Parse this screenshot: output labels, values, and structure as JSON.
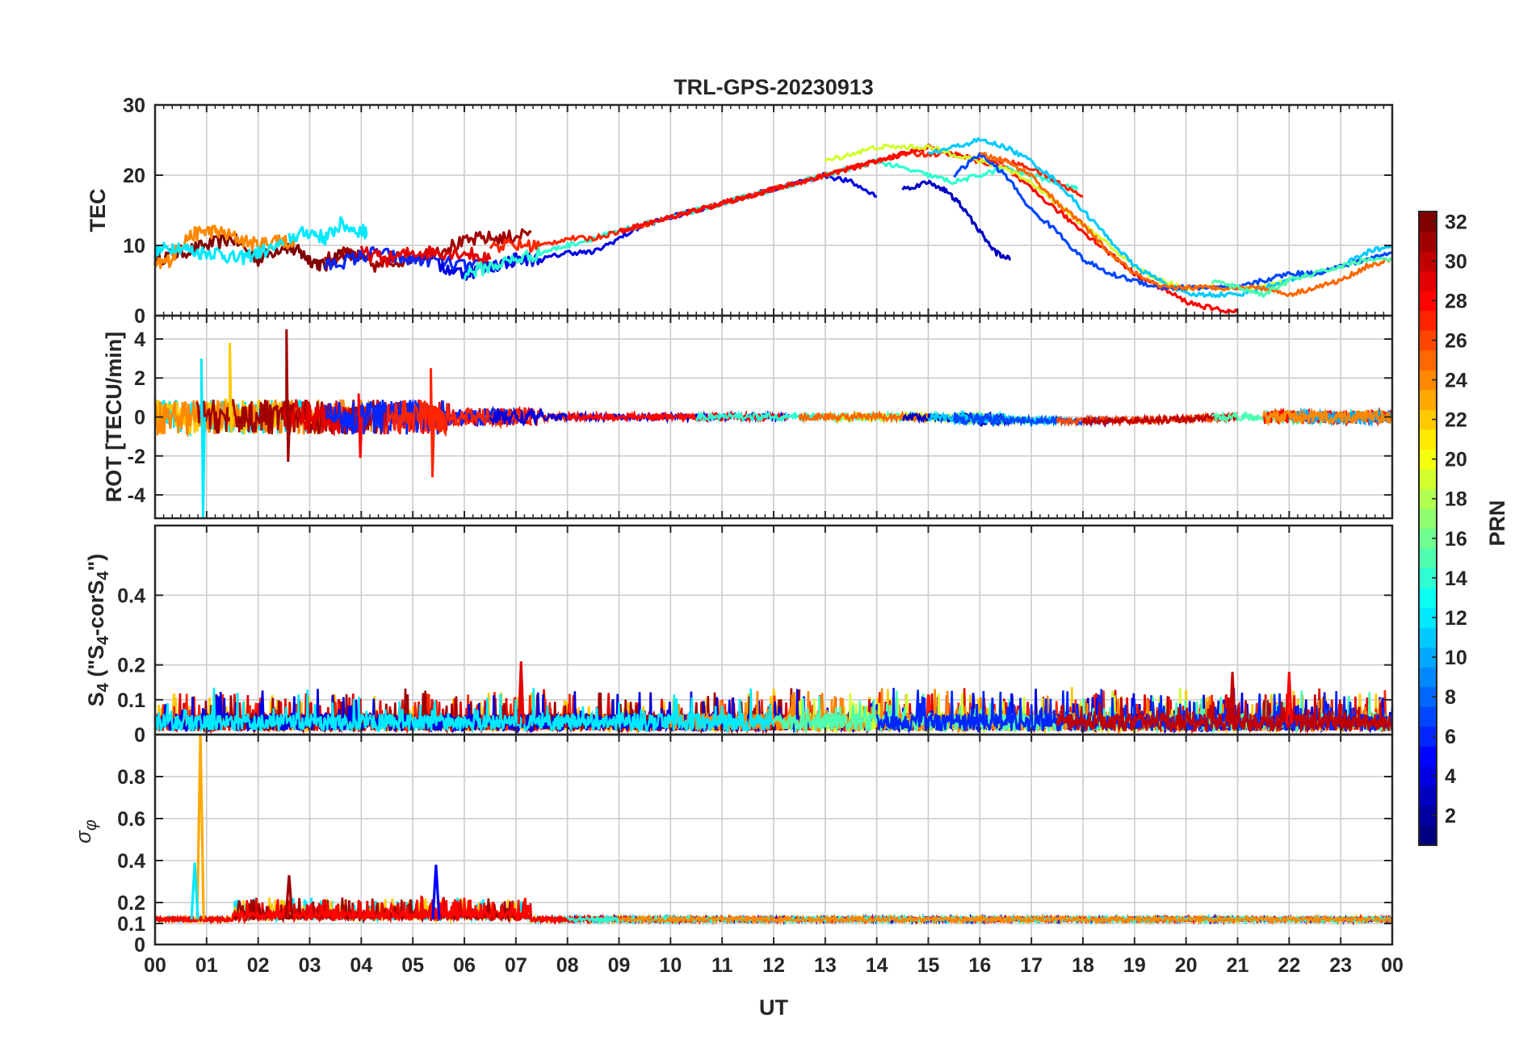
{
  "title": "TRL-GPS-20230913",
  "xlabel": "UT",
  "x_tick_labels": [
    "00",
    "01",
    "02",
    "03",
    "04",
    "05",
    "06",
    "07",
    "08",
    "09",
    "10",
    "11",
    "12",
    "13",
    "14",
    "15",
    "16",
    "17",
    "18",
    "19",
    "20",
    "21",
    "22",
    "23",
    "00"
  ],
  "colorbar": {
    "label": "PRN",
    "range": [
      1,
      32
    ],
    "tick_labels": [
      "2",
      "4",
      "6",
      "8",
      "10",
      "12",
      "14",
      "16",
      "18",
      "20",
      "22",
      "24",
      "26",
      "28",
      "30",
      "32"
    ]
  },
  "chart_data": [
    {
      "type": "line",
      "panel": "TEC",
      "ylabel": "TEC",
      "ylim": [
        0,
        30
      ],
      "y_ticks": [
        "0",
        "10",
        "20",
        "30"
      ],
      "xlim": [
        0,
        24
      ],
      "series": [
        {
          "prn": 32,
          "x": [
            0.0,
            0.5,
            1.0,
            1.5,
            2.0,
            2.5,
            2.8,
            3.0,
            3.3,
            3.6,
            4.0
          ],
          "y": [
            8,
            9,
            10,
            11,
            8,
            10,
            9,
            8,
            7,
            9,
            8
          ]
        },
        {
          "prn": 24,
          "x": [
            0.0,
            0.3,
            0.6,
            0.9,
            1.2,
            1.6,
            2.0,
            2.4,
            2.7
          ],
          "y": [
            7,
            8,
            11,
            12,
            12,
            11,
            10,
            11,
            10
          ]
        },
        {
          "prn": 12,
          "x": [
            0.0,
            0.4,
            0.8,
            1.2,
            1.6,
            2.0,
            2.5
          ],
          "y": [
            9,
            10,
            9,
            9,
            8,
            9,
            10
          ]
        },
        {
          "prn": 12,
          "x": [
            2.6,
            3.0,
            3.3,
            3.6,
            4.0,
            4.1
          ],
          "y": [
            11,
            12,
            11,
            13,
            12,
            12
          ]
        },
        {
          "prn": 31,
          "x": [
            3.3,
            3.8,
            4.3,
            4.8,
            5.3,
            5.8,
            6.3,
            6.8,
            7.3
          ],
          "y": [
            8,
            9,
            7,
            8,
            9,
            10,
            11,
            11,
            12
          ]
        },
        {
          "prn": 6,
          "x": [
            3.3,
            3.8,
            4.3,
            4.8,
            5.3,
            6.0,
            6.5,
            7.0
          ],
          "y": [
            7,
            8,
            9,
            8,
            8,
            7,
            7,
            8
          ]
        },
        {
          "prn": 29,
          "x": [
            4.0,
            4.5,
            5.0,
            5.5,
            6.0,
            6.5
          ],
          "y": [
            9,
            8,
            9,
            9,
            9,
            8
          ]
        },
        {
          "prn": 4,
          "x": [
            5.5,
            6.0,
            6.5,
            7.0,
            7.5,
            8.0,
            8.5,
            9.0,
            9.5,
            10.0,
            10.5,
            11.0,
            11.5,
            12.0,
            12.5,
            13.0,
            13.5,
            14.0
          ],
          "y": [
            7,
            6,
            7,
            8,
            8,
            9,
            9,
            11,
            13,
            14,
            15,
            16,
            17,
            18,
            19,
            20,
            19,
            17
          ]
        },
        {
          "prn": 14,
          "x": [
            6.0,
            6.5,
            7.0,
            7.5,
            8.0,
            8.5,
            9.0,
            9.5,
            10.0,
            10.5,
            11.0,
            11.5,
            12.0,
            12.5,
            13.0,
            13.5,
            14.0,
            14.5,
            15.0,
            15.5,
            16.0,
            16.5,
            17.0,
            17.5,
            17.9
          ],
          "y": [
            6,
            7,
            8,
            9,
            10,
            11,
            12,
            13,
            14,
            15,
            16,
            17,
            18,
            19,
            20,
            21,
            22,
            21,
            20,
            19,
            20,
            21,
            20,
            19,
            18
          ]
        },
        {
          "prn": 27,
          "x": [
            6.5,
            7.0,
            7.5,
            8.0,
            8.5,
            9.0,
            9.5,
            10.0,
            10.5,
            11.0,
            11.5,
            12.0,
            12.5,
            13.0,
            13.5,
            14.0,
            14.5,
            15.0,
            15.5,
            16.0,
            16.5,
            17.0,
            17.5,
            18.0
          ],
          "y": [
            10,
            10,
            10,
            11,
            11,
            12,
            13,
            14,
            15,
            16,
            17,
            18,
            19,
            20,
            21,
            22,
            23,
            23,
            23,
            22,
            22,
            21,
            19,
            17
          ]
        },
        {
          "prn": 28,
          "x": [
            9.0,
            9.5,
            10.0,
            10.5,
            11.0,
            11.5,
            12.0,
            12.5,
            13.0,
            13.5,
            14.0,
            14.5,
            15.0,
            15.5,
            16.0,
            16.5,
            17.0,
            17.5,
            18.0,
            18.5,
            19.0,
            19.5,
            20.0,
            20.5,
            21.0
          ],
          "y": [
            12,
            13,
            14,
            15,
            16,
            17,
            18,
            19,
            20,
            21,
            22,
            23,
            24,
            23,
            22,
            21,
            18,
            15,
            12,
            9,
            6,
            4,
            2,
            1,
            0.5
          ]
        },
        {
          "prn": 19,
          "x": [
            13.0,
            13.5,
            14.0,
            14.5,
            15.0,
            15.5,
            16.0,
            16.5,
            17.0,
            17.5,
            18.0,
            18.5,
            19.0,
            19.5,
            20.0,
            20.5,
            21.0,
            21.5,
            22.0
          ],
          "y": [
            22,
            23,
            24,
            24,
            24,
            23,
            22,
            21,
            19,
            16,
            13,
            10,
            7,
            5,
            4,
            4,
            4,
            4,
            5
          ]
        },
        {
          "prn": 11,
          "x": [
            15.0,
            15.5,
            16.0,
            16.5,
            17.0,
            17.5,
            18.0,
            18.5,
            19.0,
            19.5,
            20.0,
            20.5,
            21.0,
            21.5,
            22.0,
            22.5,
            23.0,
            23.5,
            24.0
          ],
          "y": [
            23,
            24,
            25,
            24,
            22,
            19,
            15,
            11,
            7,
            5,
            3,
            3,
            3,
            4,
            5,
            6,
            7,
            9,
            10
          ]
        },
        {
          "prn": 7,
          "x": [
            15.5,
            16.0,
            16.5,
            17.0,
            17.5,
            18.0,
            18.5,
            19.0,
            19.5,
            20.0,
            20.5,
            21.0,
            21.5,
            22.0,
            22.5,
            23.0,
            23.5,
            24.0
          ],
          "y": [
            20,
            23,
            20,
            15,
            12,
            8,
            6,
            5,
            4,
            4,
            4,
            4,
            5,
            6,
            6,
            7,
            8,
            9
          ]
        },
        {
          "prn": 3,
          "x": [
            14.5,
            15.0,
            15.3,
            15.6,
            16.0,
            16.3,
            16.6
          ],
          "y": [
            18,
            19,
            18,
            16,
            12,
            9,
            8
          ]
        },
        {
          "prn": 25,
          "x": [
            16.0,
            16.5,
            17.0,
            17.5,
            18.0,
            18.5,
            19.0,
            19.5,
            20.0,
            20.5,
            21.0,
            21.5,
            22.0,
            22.5,
            23.0,
            23.5,
            24.0
          ],
          "y": [
            23,
            22,
            20,
            16,
            13,
            9,
            6,
            4,
            4,
            4,
            4,
            4,
            3,
            4,
            5,
            7,
            8
          ]
        },
        {
          "prn": 15,
          "x": [
            20.5,
            21.0,
            21.5,
            22.0,
            22.5,
            23.0,
            23.5,
            24.0
          ],
          "y": [
            5,
            4,
            3,
            5,
            6,
            7,
            8,
            8
          ]
        }
      ]
    },
    {
      "type": "line",
      "panel": "ROT",
      "ylabel": "ROT [TECU/min]",
      "ylim": [
        -5.2,
        5.2
      ],
      "y_ticks": [
        "-4",
        "-2",
        "0",
        "2",
        "4"
      ],
      "xlim": [
        0,
        24
      ],
      "annotations": [
        {
          "prn": 12,
          "x": 0.9,
          "ymin": -5.2,
          "ymax": 3.0
        },
        {
          "prn": 31,
          "x": 2.55,
          "ymin": -2.3,
          "ymax": 4.5
        },
        {
          "prn": 22,
          "x": 1.45,
          "ymin": -0.8,
          "ymax": 3.8
        },
        {
          "prn": 27,
          "x": 5.35,
          "ymin": -3.1,
          "ymax": 2.5
        },
        {
          "prn": 28,
          "x": 3.95,
          "ymin": -2.1,
          "ymax": 1.2
        }
      ]
    },
    {
      "type": "line",
      "panel": "S4",
      "ylabel": "S4 (\"S4-corS4\")",
      "ylim": [
        0,
        0.6
      ],
      "y_ticks": [
        "0",
        "0.1",
        "0.2",
        "0.4"
      ],
      "xlim": [
        0,
        24
      ],
      "peaks": [
        {
          "prn": 29,
          "x": 7.1,
          "y": 0.21
        },
        {
          "prn": 30,
          "x": 20.9,
          "y": 0.18
        },
        {
          "prn": 28,
          "x": 22.0,
          "y": 0.18
        }
      ]
    },
    {
      "type": "line",
      "panel": "sigma_phi",
      "ylabel": "σφ",
      "ylim": [
        0,
        1
      ],
      "y_ticks": [
        "0",
        "0.1",
        "0.2",
        "0.4",
        "0.6",
        "0.8"
      ],
      "xlim": [
        0,
        24
      ],
      "peaks": [
        {
          "prn": 23,
          "x": 0.88,
          "y": 1.0
        },
        {
          "prn": 12,
          "x": 0.77,
          "y": 0.39
        },
        {
          "prn": 5,
          "x": 5.45,
          "y": 0.38
        },
        {
          "prn": 31,
          "x": 2.6,
          "y": 0.33
        }
      ]
    }
  ]
}
